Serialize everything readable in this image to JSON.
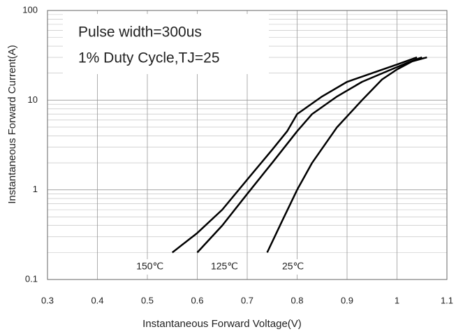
{
  "chart_data": {
    "type": "line",
    "xlabel": "Instantaneous Forward Voltage(V)",
    "ylabel": "Instantaneous Forward Current(A)",
    "annotations": [
      "Pulse width=300us",
      "1% Duty Cycle,TJ=25"
    ],
    "log_y": true,
    "grid": true,
    "color": "#000000",
    "xlim": [
      0.3,
      1.1
    ],
    "xticks": [
      0.3,
      0.4,
      0.5,
      0.6,
      0.7,
      0.8,
      0.9,
      1,
      1.1
    ],
    "ylim": [
      0.1,
      100
    ],
    "yticks": [
      0.1,
      1,
      10,
      100
    ],
    "yminorticks": [
      0.2,
      0.3,
      0.4,
      0.5,
      0.6,
      0.7,
      0.8,
      0.9,
      2,
      3,
      4,
      5,
      6,
      7,
      8,
      9,
      20,
      30,
      40,
      50,
      60,
      70,
      80,
      90
    ],
    "series": [
      {
        "name": "150℃",
        "x": [
          0.55,
          0.6,
          0.65,
          0.7,
          0.75,
          0.78,
          0.8,
          0.85,
          0.9,
          0.95,
          1.0,
          1.04
        ],
        "values": [
          0.2,
          0.33,
          0.6,
          1.3,
          2.8,
          4.5,
          7,
          11,
          16,
          20,
          25,
          30
        ]
      },
      {
        "name": "125℃",
        "x": [
          0.6,
          0.65,
          0.7,
          0.75,
          0.8,
          0.83,
          0.88,
          0.93,
          0.98,
          1.02,
          1.05
        ],
        "values": [
          0.2,
          0.4,
          0.9,
          2,
          4.5,
          7,
          11,
          16,
          21,
          26,
          30
        ]
      },
      {
        "name": "25℃",
        "x": [
          0.74,
          0.77,
          0.8,
          0.83,
          0.88,
          0.93,
          0.97,
          1.0,
          1.03,
          1.06
        ],
        "values": [
          0.2,
          0.45,
          1,
          2,
          5,
          10,
          17,
          22,
          27,
          30
        ]
      }
    ]
  }
}
